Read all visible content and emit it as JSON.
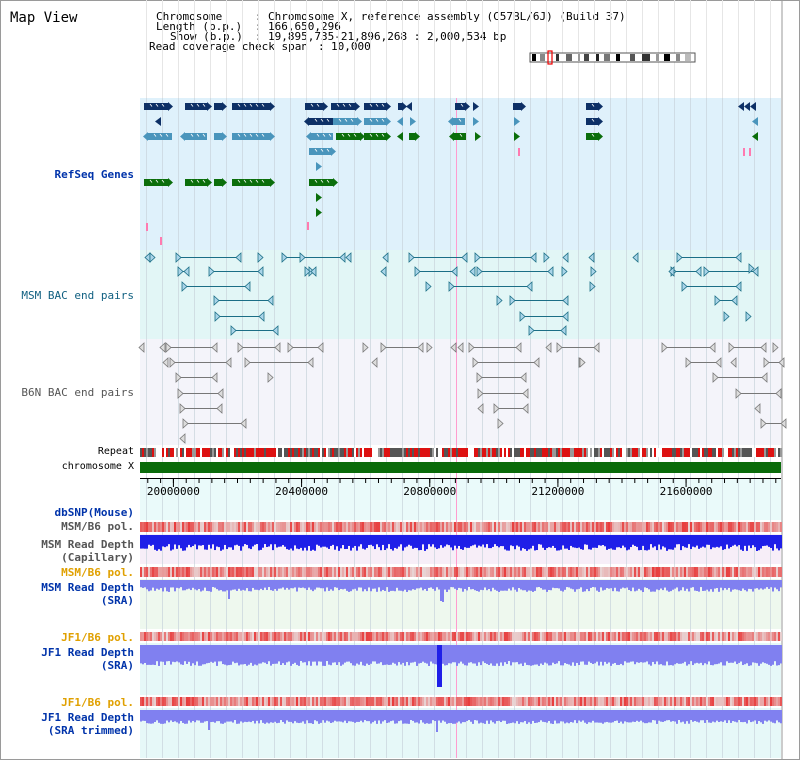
{
  "panel": {
    "title": "Map View"
  },
  "header": {
    "chromosome_label": "Chromosome",
    "chromosome_value": "Chromosome X, reference assembly (C57BL/6J) (Build 37)",
    "length_label": "Length (b.p.)",
    "length_value": "166,650,296",
    "show_label": "Show (b.p.)",
    "show_value": "19,895,735-21,896,268 : 2,000,534 bp",
    "coverage_label": "Read coverage check span",
    "coverage_value": "10,000",
    "sep": ":"
  },
  "tracks": {
    "refseq": "RefSeq Genes",
    "msm_bac": "MSM BAC end pairs",
    "b6n_bac": "B6N BAC end pairs",
    "repeat": "Repeat",
    "chromosome": "chromosome X",
    "dbsnp": "dbSNP(Mouse)",
    "msm_b6_pol_cap": "MSM/B6 pol.",
    "msm_depth_cap": "MSM Read Depth\n(Capillary)",
    "msm_b6_pol_sra": "MSM/B6 pol.",
    "msm_depth_sra": "MSM Read Depth\n(SRA)",
    "jf1_b6_pol": "JF1/B6 pol.",
    "jf1_depth_sra": "JF1 Read Depth\n(SRA)",
    "jf1_b6_pol_trim": "JF1/B6 pol.",
    "jf1_depth_trim": "JF1 Read Depth\n(SRA trimmed)"
  },
  "axis": {
    "view_start": 19895735,
    "view_end": 21896268,
    "ticks": [
      20000000,
      20400000,
      20800000,
      21200000,
      21600000
    ],
    "tick_labels": [
      "20000000",
      "20400000",
      "20800000",
      "21200000",
      "21600000"
    ]
  },
  "colors": {
    "refseq_dark": "#0d3066",
    "refseq_mid": "#4a95bc",
    "refseq_green": "#0b6e0b",
    "msm_bac": "#1b6e86",
    "b6n_bac": "#777777",
    "chromosome_bar": "#0a6b0a",
    "depth_blue": "#1f1fe8",
    "depth_light": "#8080f0",
    "pol_red": "#e83030"
  }
}
